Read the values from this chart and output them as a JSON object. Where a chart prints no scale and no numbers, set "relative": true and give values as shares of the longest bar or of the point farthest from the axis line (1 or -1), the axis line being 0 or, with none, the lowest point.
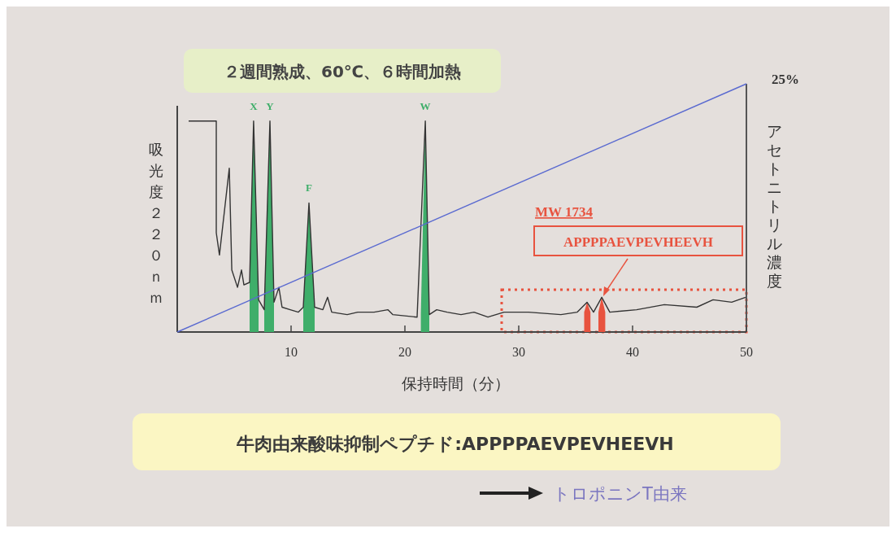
{
  "chart_data": {
    "type": "line",
    "title": "２週間熟成、60℃、６時間加熱",
    "xlabel": "保持時間（分）",
    "ylabel": "吸光度２２０ｎｍ",
    "y2label": "アセトニトリル濃度",
    "relative": true,
    "xlim": [
      0,
      50
    ],
    "xticks": [
      10,
      20,
      30,
      40,
      50
    ],
    "annotations": [
      {
        "text": "X",
        "x": 6.71,
        "y": 0.85
      },
      {
        "text": "Y",
        "x": 8.14,
        "y": 0.85
      },
      {
        "text": "F",
        "x": 11.57,
        "y": 0.52
      },
      {
        "text": "W",
        "x": 21.79,
        "y": 0.85
      },
      {
        "text": "25%",
        "x": 50,
        "y": 1
      },
      "MW 1734",
      "APPPPAEVPEVHEEVH",
      "牛肉由来酸味抑制ペプチド:APPPPAEVPEVHEEVH",
      "トロポニンT由来"
    ],
    "series": [
      {
        "color": "#333333",
        "x": [
          1.0,
          3.43,
          3.43,
          3.71,
          4.57,
          4.79,
          5.29,
          5.64,
          5.86,
          6.36,
          6.71,
          7.14,
          7.64,
          8.14,
          8.5,
          8.93,
          9.21,
          9.93,
          10.64,
          11.07,
          11.57,
          12.07,
          12.79,
          13.21,
          13.57,
          14.93,
          15.86,
          17.29,
          18.5,
          18.93,
          21.07,
          21.79,
          22.14,
          22.79,
          23.71,
          24.93,
          26.07,
          27.29,
          28.71,
          30.86,
          33.71,
          35.14,
          36.0,
          36.57,
          37.29,
          38.0,
          40.36,
          42.79,
          45.64,
          47.07,
          48.71,
          49.93
        ],
        "values": [
          0.85,
          0.85,
          0.4,
          0.31,
          0.66,
          0.25,
          0.18,
          0.25,
          0.19,
          0.2,
          0.85,
          0.13,
          0.09,
          0.85,
          0.12,
          0.18,
          0.1,
          0.09,
          0.08,
          0.1,
          0.52,
          0.1,
          0.09,
          0.14,
          0.08,
          0.07,
          0.08,
          0.08,
          0.09,
          0.07,
          0.06,
          0.85,
          0.07,
          0.09,
          0.08,
          0.07,
          0.08,
          0.06,
          0.08,
          0.08,
          0.07,
          0.08,
          0.12,
          0.08,
          0.14,
          0.08,
          0.09,
          0.11,
          0.1,
          0.13,
          0.12,
          0.14
        ]
      },
      {
        "type": "area",
        "color": "#3fae6a",
        "x": [
          6.36,
          6.71,
          7.14
        ],
        "values": [
          0.2,
          0.85,
          0.13
        ]
      },
      {
        "type": "area",
        "color": "#3fae6a",
        "x": [
          7.64,
          8.14,
          8.5
        ],
        "values": [
          0.09,
          0.85,
          0.12
        ]
      },
      {
        "type": "area",
        "color": "#3fae6a",
        "x": [
          11.07,
          11.57,
          12.07
        ],
        "values": [
          0.1,
          0.52,
          0.1
        ]
      },
      {
        "type": "area",
        "color": "#3fae6a",
        "x": [
          21.4,
          21.79,
          22.14
        ],
        "values": [
          0.07,
          0.85,
          0.07
        ]
      },
      {
        "type": "area",
        "color": "#e8533f",
        "x": [
          35.75,
          36.0,
          36.3
        ],
        "values": [
          0.08,
          0.12,
          0.08
        ]
      },
      {
        "type": "area",
        "color": "#e8533f",
        "x": [
          37.0,
          37.29,
          37.6
        ],
        "values": [
          0.08,
          0.14,
          0.08
        ]
      },
      {
        "color": "#5a6ad0",
        "x": [
          0,
          50
        ],
        "values": [
          0,
          1
        ]
      }
    ]
  }
}
